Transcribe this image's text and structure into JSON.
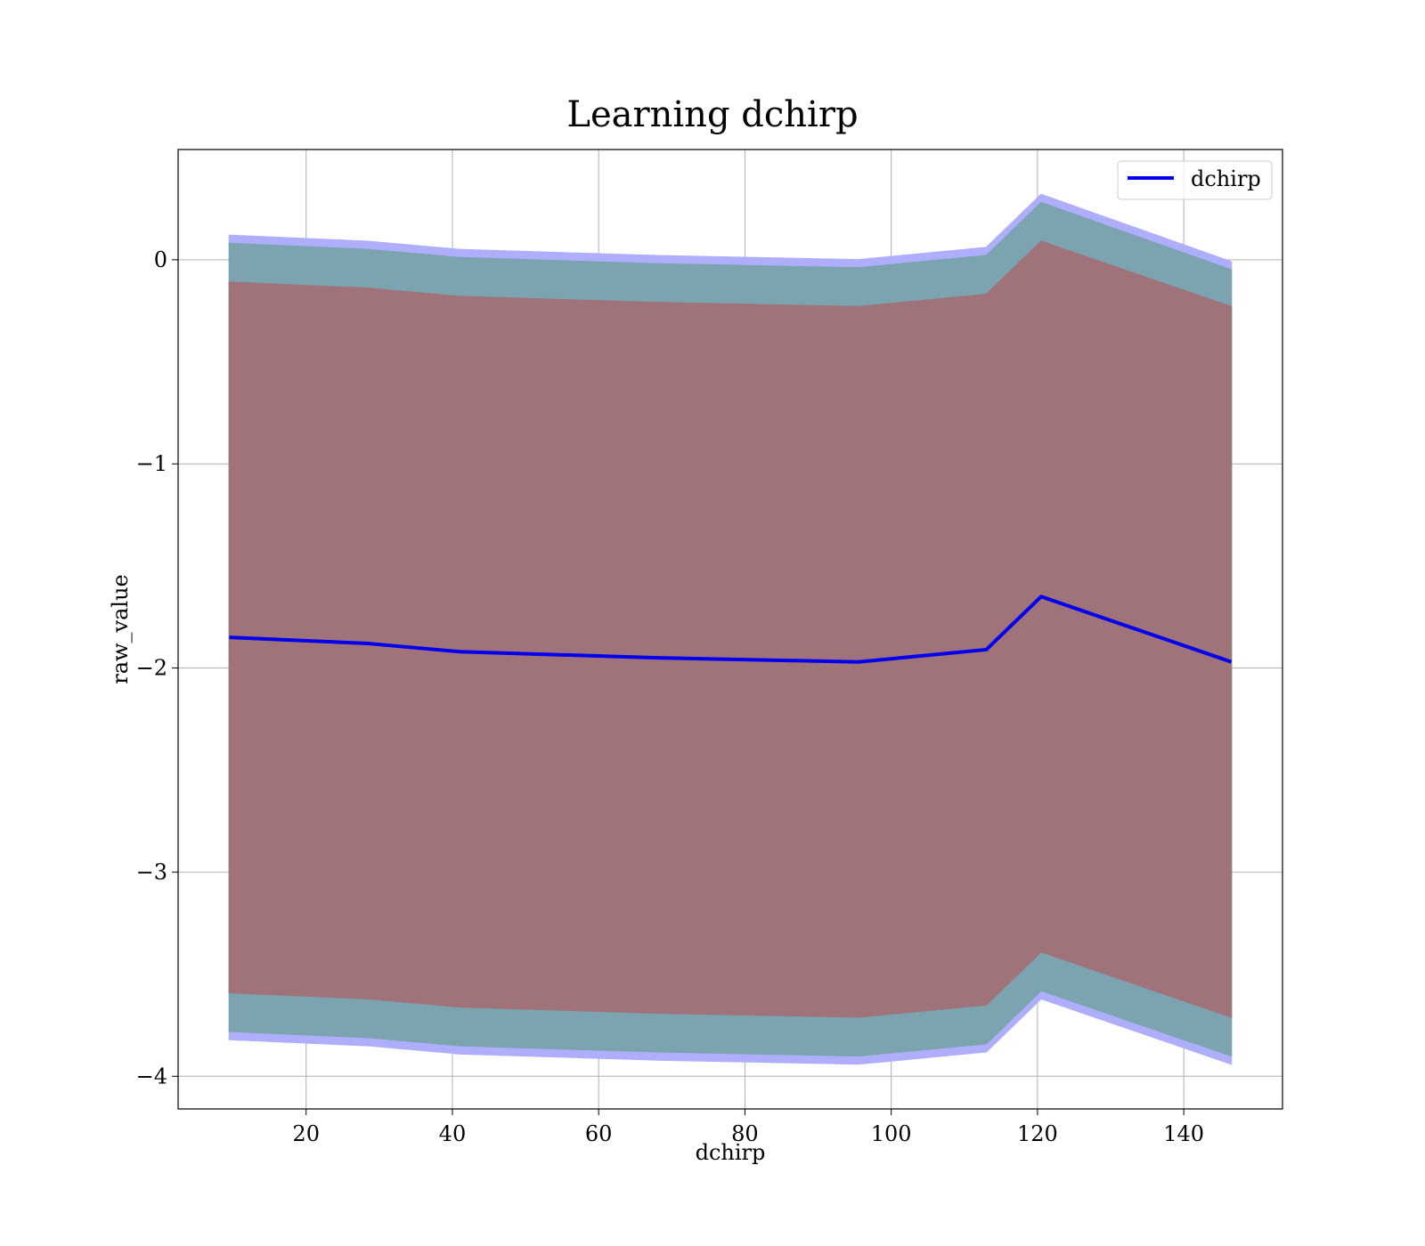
{
  "chart_data": {
    "type": "line",
    "title": "Learning dchirp",
    "xlabel": "dchirp",
    "ylabel": "raw_value",
    "xlim": [
      2.5,
      153.5
    ],
    "ylim": [
      -4.16,
      0.54
    ],
    "xticks": [
      20,
      40,
      60,
      80,
      100,
      120,
      140
    ],
    "yticks": [
      0,
      -1,
      -2,
      -3,
      -4
    ],
    "xtick_labels": [
      "20",
      "40",
      "60",
      "80",
      "100",
      "120",
      "140"
    ],
    "ytick_labels": [
      "0",
      "−1",
      "−2",
      "−3",
      "−4"
    ],
    "grid": true,
    "legend_position": "top-right",
    "x": [
      9.5,
      28.5,
      41,
      68,
      95.5,
      113,
      120.5,
      146.5
    ],
    "series": [
      {
        "name": "dchirp",
        "color": "#0000ee",
        "values": [
          -1.85,
          -1.88,
          -1.92,
          -1.95,
          -1.97,
          -1.91,
          -1.65,
          -1.97
        ]
      }
    ],
    "bands": [
      {
        "color": "#aeaefc",
        "upper": [
          0.12,
          0.09,
          0.05,
          0.02,
          0.0,
          0.06,
          0.32,
          -0.01
        ],
        "lower": [
          -3.82,
          -3.85,
          -3.89,
          -3.92,
          -3.94,
          -3.88,
          -3.62,
          -3.94
        ]
      },
      {
        "color": "#7ba3b0",
        "upper": [
          0.08,
          0.05,
          0.01,
          -0.02,
          -0.04,
          0.02,
          0.28,
          -0.05
        ],
        "lower": [
          -3.78,
          -3.81,
          -3.85,
          -3.88,
          -3.9,
          -3.84,
          -3.58,
          -3.9
        ]
      },
      {
        "color": "#a07279",
        "upper": [
          -0.11,
          -0.14,
          -0.18,
          -0.21,
          -0.23,
          -0.17,
          0.09,
          -0.23
        ],
        "lower": [
          -3.59,
          -3.62,
          -3.66,
          -3.69,
          -3.71,
          -3.65,
          -3.39,
          -3.71
        ]
      }
    ]
  }
}
